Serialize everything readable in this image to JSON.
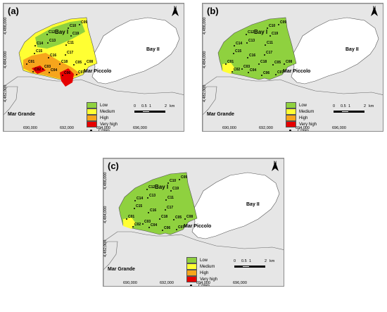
{
  "panels": [
    {
      "label": "(a)",
      "id": "a"
    },
    {
      "label": "(b)",
      "id": "b"
    },
    {
      "label": "(c)",
      "id": "c"
    }
  ],
  "places": {
    "bay1": "Bay I",
    "bay2": "Bay II",
    "mar_piccolo": "Mar Piccolo",
    "mar_grande": "Mar Grande"
  },
  "axes": {
    "x_ticks": [
      "690,000",
      "692,000",
      "694,000",
      "696,000"
    ],
    "y_ticks": [
      "4,486,000",
      "4,484,000",
      "4,482,000"
    ]
  },
  "north": "N",
  "scale": {
    "ticks": [
      "0",
      "0.5",
      "1",
      "2"
    ],
    "unit": "km"
  },
  "legend": [
    {
      "label": "Low",
      "color": "#8fd13f"
    },
    {
      "label": "Medium",
      "color": "#ffff33"
    },
    {
      "label": "High",
      "color": "#f6a51c"
    },
    {
      "label": "Very high",
      "color": "#e60000"
    }
  ],
  "legend_cores": "Cores",
  "cores": [
    "C09",
    "C10",
    "C12",
    "C19",
    "C13",
    "C11",
    "C14",
    "C15",
    "C17",
    "C16",
    "C18",
    "C01",
    "C05",
    "C08",
    "C03",
    "C02",
    "C04",
    "C06",
    "C07"
  ],
  "colors": {
    "land": "#e6e6e6",
    "bay2": "#ffffff"
  }
}
